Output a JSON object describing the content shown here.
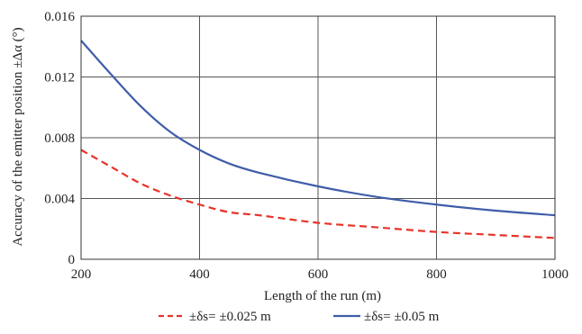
{
  "chart_data": {
    "type": "line",
    "xlabel": "Length of the run (m)",
    "ylabel": "Accuracy of the emitter position ±Δα (°)",
    "xlim": [
      200,
      1000
    ],
    "ylim": [
      0,
      0.016
    ],
    "x_ticks": [
      "200",
      "400",
      "600",
      "800",
      "1000"
    ],
    "y_ticks": [
      "0",
      "0.004",
      "0.008",
      "0.012",
      "0.016"
    ],
    "grid": true,
    "legend_position": "bottom",
    "series": [
      {
        "name": "±δs= ±0.025 m",
        "color": "#e8332a",
        "style": "dashed",
        "x": [
          200,
          250,
          300,
          350,
          400,
          450,
          500,
          600,
          700,
          800,
          900,
          1000
        ],
        "y": [
          0.0072,
          0.0061,
          0.005,
          0.0042,
          0.0036,
          0.0031,
          0.0029,
          0.0024,
          0.0021,
          0.0018,
          0.0016,
          0.0014
        ]
      },
      {
        "name": "±δs= ±0.05 m",
        "color": "#3f5da8",
        "style": "solid",
        "x": [
          200,
          250,
          300,
          350,
          400,
          450,
          500,
          600,
          700,
          800,
          900,
          1000
        ],
        "y": [
          0.0144,
          0.0122,
          0.0101,
          0.0084,
          0.0072,
          0.0063,
          0.0057,
          0.0048,
          0.0041,
          0.0036,
          0.0032,
          0.0029
        ]
      }
    ]
  }
}
